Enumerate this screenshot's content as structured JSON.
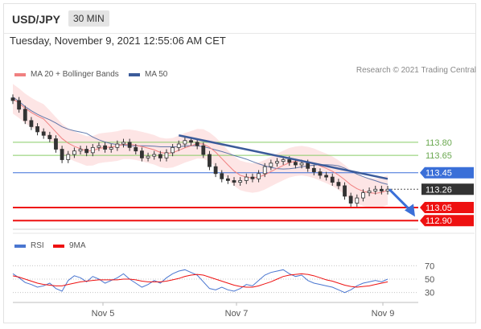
{
  "header": {
    "pair": "USD/JPY",
    "timeframe": "30 MIN"
  },
  "datetime": "Tuesday, November 9, 2021 12:55:06 AM CET",
  "legend": {
    "ma20": "MA 20 + Bollinger Bands",
    "ma50": "MA 50",
    "credit": "Research © 2021 Trading Central",
    "rsi": "RSI",
    "ma9": "9MA"
  },
  "colors": {
    "ma20": "#f08080",
    "bands": "#fde0e0",
    "ma50": "#3b5b9a",
    "support": "#ee1111",
    "resistance_green": "#88cc66",
    "pivot_blue": "#3a6fd8",
    "candle": "#333333",
    "rsi": "#4a76d0"
  },
  "chart_data": [
    {
      "type": "line",
      "title": "USD/JPY 30 MIN",
      "x_ticks": [
        "Nov 5",
        "Nov 7",
        "Nov 9"
      ],
      "ylim": [
        112.8,
        114.4
      ],
      "levels": [
        {
          "value": 113.8,
          "label": "113.80",
          "kind": "resistance"
        },
        {
          "value": 113.65,
          "label": "113.65",
          "kind": "resistance"
        },
        {
          "value": 113.45,
          "label": "113.45",
          "kind": "pivot"
        },
        {
          "value": 113.26,
          "label": "113.26",
          "kind": "last"
        },
        {
          "value": 113.05,
          "label": "113.05",
          "kind": "support"
        },
        {
          "value": 112.9,
          "label": "112.90",
          "kind": "support"
        }
      ],
      "close_series": [
        114.28,
        114.18,
        114.05,
        113.98,
        113.92,
        113.88,
        113.84,
        113.72,
        113.6,
        113.66,
        113.7,
        113.72,
        113.68,
        113.74,
        113.76,
        113.72,
        113.74,
        113.78,
        113.8,
        113.74,
        113.7,
        113.62,
        113.64,
        113.66,
        113.62,
        113.68,
        113.74,
        113.78,
        113.82,
        113.8,
        113.76,
        113.66,
        113.52,
        113.44,
        113.38,
        113.36,
        113.34,
        113.36,
        113.4,
        113.38,
        113.44,
        113.52,
        113.56,
        113.58,
        113.6,
        113.57,
        113.54,
        113.56,
        113.5,
        113.46,
        113.42,
        113.4,
        113.34,
        113.3,
        113.18,
        113.1,
        113.16,
        113.22,
        113.24,
        113.26,
        113.24,
        113.26
      ],
      "trendline": {
        "start": 113.88,
        "end": 113.38
      },
      "forecast_arrow": {
        "from": 113.26,
        "to": 113.0
      }
    },
    {
      "type": "line",
      "title": "RSI",
      "ylim": [
        20,
        80
      ],
      "y_ticks": [
        70,
        50,
        30
      ],
      "series": [
        {
          "name": "RSI",
          "values": [
            58,
            52,
            45,
            42,
            38,
            40,
            44,
            36,
            32,
            48,
            55,
            52,
            46,
            54,
            50,
            44,
            48,
            52,
            58,
            50,
            44,
            38,
            42,
            48,
            44,
            52,
            58,
            62,
            64,
            60,
            56,
            46,
            36,
            34,
            38,
            34,
            32,
            36,
            42,
            40,
            48,
            56,
            60,
            62,
            64,
            58,
            54,
            56,
            48,
            44,
            42,
            40,
            38,
            34,
            30,
            34,
            40,
            44,
            46,
            48,
            46,
            50
          ]
        },
        {
          "name": "9MA",
          "values": [
            55,
            53,
            50,
            47,
            44,
            42,
            41,
            40,
            40,
            42,
            44,
            46,
            47,
            48,
            49,
            49,
            49,
            49,
            50,
            50,
            49,
            47,
            46,
            46,
            46,
            47,
            49,
            51,
            54,
            56,
            57,
            56,
            53,
            50,
            47,
            44,
            41,
            39,
            38,
            38,
            40,
            43,
            46,
            50,
            54,
            56,
            57,
            58,
            57,
            55,
            52,
            49,
            47,
            44,
            41,
            39,
            38,
            39,
            40,
            42,
            44,
            46
          ]
        }
      ]
    }
  ]
}
